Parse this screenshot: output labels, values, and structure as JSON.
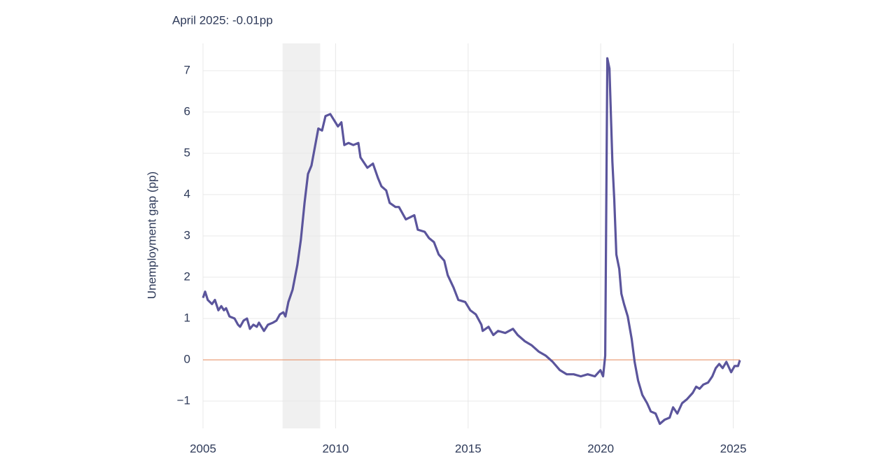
{
  "chart_data": {
    "type": "line",
    "annotation": "April 2025: -0.01pp",
    "y_label": "Unemployment gap (pp)",
    "x": [
      2005.0,
      2005.08,
      2005.18,
      2005.34,
      2005.45,
      2005.58,
      2005.69,
      2005.79,
      2005.87,
      2006.0,
      2006.19,
      2006.32,
      2006.4,
      2006.53,
      2006.66,
      2006.77,
      2006.9,
      2007.03,
      2007.11,
      2007.3,
      2007.45,
      2007.64,
      2007.77,
      2007.9,
      2008.03,
      2008.11,
      2008.22,
      2008.38,
      2008.56,
      2008.69,
      2008.83,
      2008.96,
      2009.09,
      2009.35,
      2009.49,
      2009.62,
      2009.8,
      2010.09,
      2010.22,
      2010.33,
      2010.49,
      2010.67,
      2010.86,
      2010.94,
      2011.2,
      2011.41,
      2011.6,
      2011.73,
      2011.91,
      2012.04,
      2012.26,
      2012.39,
      2012.65,
      2012.97,
      2013.1,
      2013.36,
      2013.52,
      2013.71,
      2013.89,
      2014.1,
      2014.23,
      2014.45,
      2014.63,
      2014.89,
      2015.08,
      2015.29,
      2015.5,
      2015.55,
      2015.77,
      2015.95,
      2016.13,
      2016.4,
      2016.69,
      2016.87,
      2017.14,
      2017.4,
      2017.66,
      2017.93,
      2018.19,
      2018.46,
      2018.72,
      2018.98,
      2019.25,
      2019.51,
      2019.78,
      2019.99,
      2020.09,
      2020.17,
      2020.25,
      2020.33,
      2020.44,
      2020.51,
      2020.59,
      2020.7,
      2020.78,
      2020.88,
      2021.02,
      2021.17,
      2021.28,
      2021.41,
      2021.57,
      2021.75,
      2021.89,
      2022.07,
      2022.23,
      2022.41,
      2022.6,
      2022.73,
      2022.89,
      2023.07,
      2023.26,
      2023.47,
      2023.6,
      2023.73,
      2023.87,
      2024.05,
      2024.21,
      2024.34,
      2024.47,
      2024.6,
      2024.74,
      2024.92,
      2025.05,
      2025.18,
      2025.25
    ],
    "series": [
      {
        "color": "#5b559c",
        "values": [
          1.5,
          1.65,
          1.45,
          1.35,
          1.45,
          1.2,
          1.3,
          1.2,
          1.25,
          1.05,
          1.0,
          0.85,
          0.8,
          0.95,
          1.0,
          0.75,
          0.85,
          0.8,
          0.9,
          0.7,
          0.85,
          0.9,
          0.95,
          1.1,
          1.15,
          1.05,
          1.4,
          1.7,
          2.3,
          2.9,
          3.8,
          4.5,
          4.7,
          5.6,
          5.55,
          5.9,
          5.95,
          5.65,
          5.75,
          5.2,
          5.25,
          5.2,
          5.25,
          4.9,
          4.65,
          4.75,
          4.4,
          4.2,
          4.1,
          3.8,
          3.7,
          3.7,
          3.4,
          3.5,
          3.15,
          3.1,
          2.95,
          2.85,
          2.55,
          2.4,
          2.05,
          1.75,
          1.45,
          1.4,
          1.2,
          1.1,
          0.85,
          0.7,
          0.8,
          0.6,
          0.7,
          0.65,
          0.75,
          0.6,
          0.45,
          0.35,
          0.2,
          0.1,
          -0.05,
          -0.25,
          -0.35,
          -0.35,
          -0.4,
          -0.35,
          -0.4,
          -0.25,
          -0.4,
          0.1,
          7.3,
          7.05,
          4.8,
          3.9,
          2.55,
          2.2,
          1.6,
          1.35,
          1.05,
          0.5,
          -0.05,
          -0.5,
          -0.85,
          -1.05,
          -1.25,
          -1.3,
          -1.55,
          -1.45,
          -1.4,
          -1.15,
          -1.3,
          -1.05,
          -0.95,
          -0.8,
          -0.65,
          -0.7,
          -0.6,
          -0.55,
          -0.4,
          -0.2,
          -0.1,
          -0.2,
          -0.05,
          -0.3,
          -0.15,
          -0.15,
          -0.01
        ]
      }
    ],
    "xlim": [
      2005,
      2025.25
    ],
    "xticks": [
      2005,
      2010,
      2015,
      2020,
      2025
    ],
    "ylim": [
      -1.66,
      7.66
    ],
    "yticks": [
      {
        "value": -1,
        "label": "−1"
      },
      0,
      1,
      2,
      3,
      4,
      5,
      6,
      7
    ],
    "shaded_regions": [
      {
        "range": [
          2008.0,
          2009.42
        ],
        "color": "#f0f0f0"
      }
    ],
    "hline": {
      "value": 0,
      "color": "#e8956b"
    },
    "grid": true
  }
}
